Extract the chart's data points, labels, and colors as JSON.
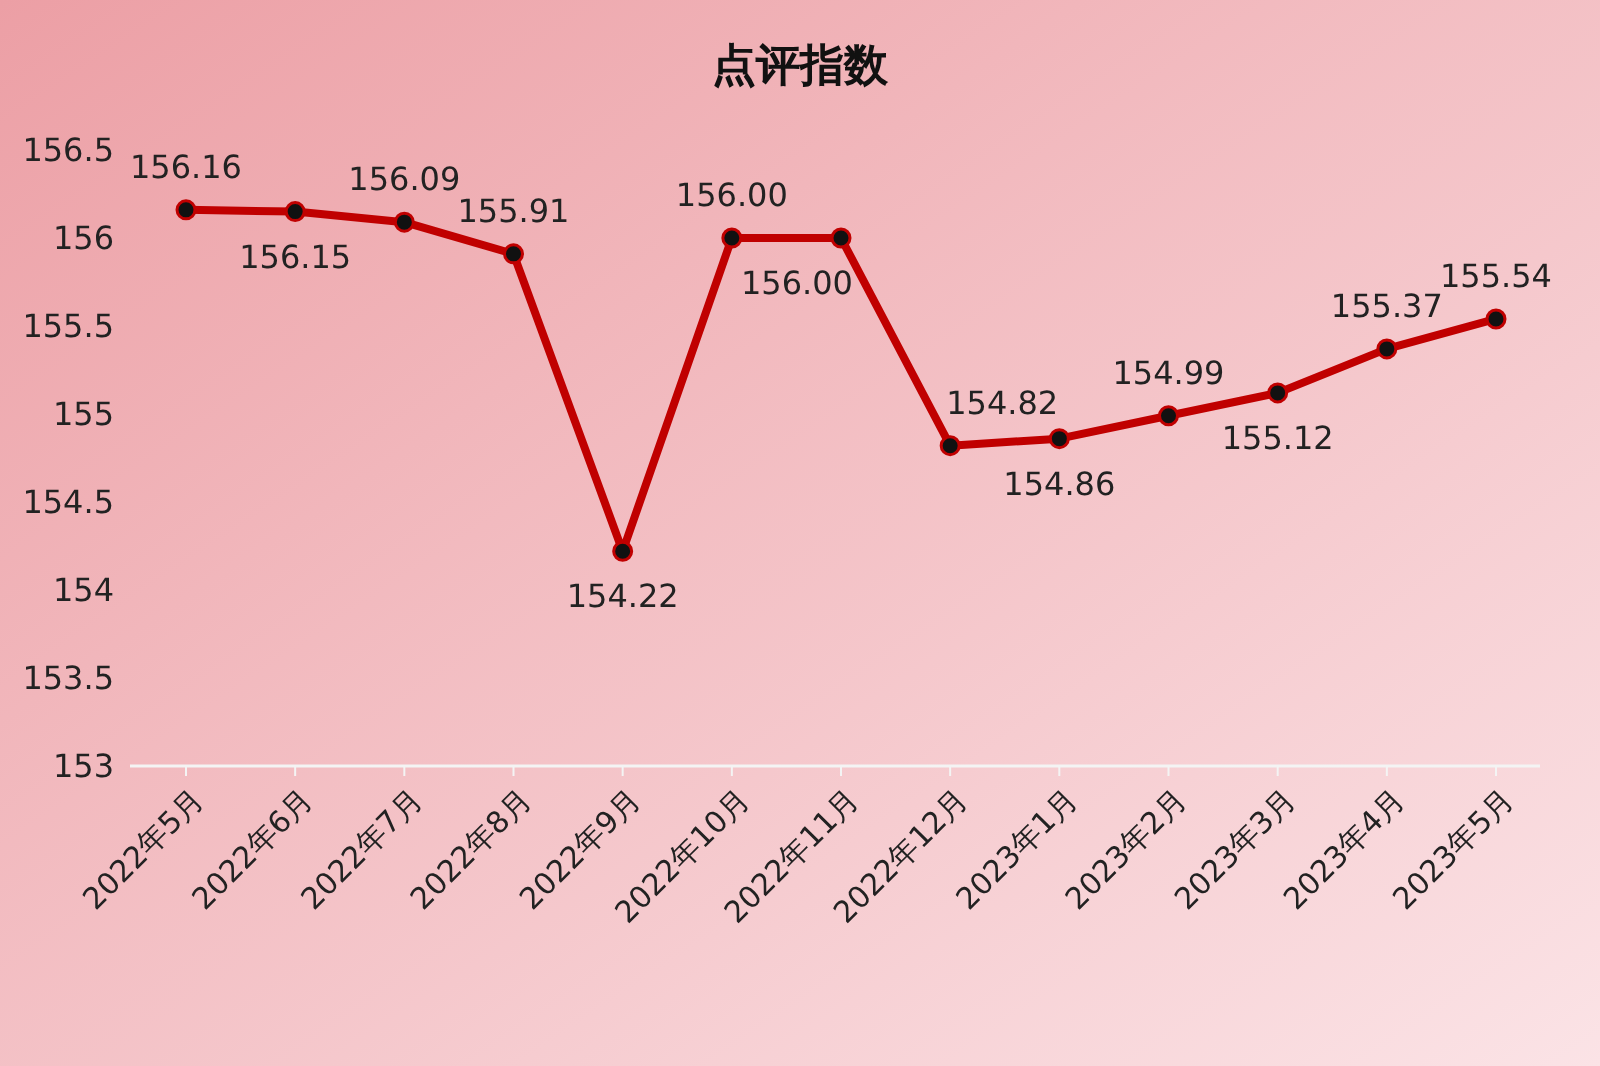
{
  "chart_data": {
    "type": "line",
    "title": "点评指数",
    "categories": [
      "2022年5月",
      "2022年6月",
      "2022年7月",
      "2022年8月",
      "2022年9月",
      "2022年10月",
      "2022年11月",
      "2022年12月",
      "2023年1月",
      "2023年2月",
      "2023年3月",
      "2023年4月",
      "2023年5月"
    ],
    "series": [
      {
        "color": "#c00000",
        "values": [
          156.16,
          156.15,
          156.09,
          155.91,
          154.22,
          156.0,
          156.0,
          154.82,
          154.86,
          154.99,
          155.12,
          155.37,
          155.54
        ]
      }
    ],
    "value_labels": [
      "156.16",
      "156.15",
      "156.09",
      "155.91",
      "154.22",
      "156.00",
      "156.00",
      "154.82",
      "154.86",
      "154.99",
      "155.12",
      "155.37",
      "155.54"
    ],
    "ylim": [
      153,
      156.5
    ],
    "yticks": [
      153,
      153.5,
      154,
      154.5,
      155,
      155.5,
      156,
      156.5
    ],
    "marker": "circle",
    "line_style": "solid"
  }
}
